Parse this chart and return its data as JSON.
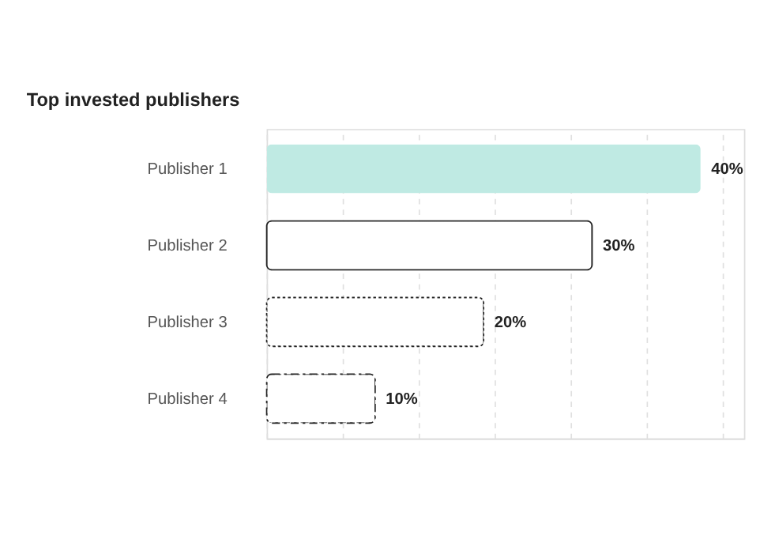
{
  "chart_data": {
    "type": "bar",
    "orientation": "horizontal",
    "title": "Top invested publishers",
    "categories": [
      "Publisher 1",
      "Publisher 2",
      "Publisher 3",
      "Publisher 4"
    ],
    "values": [
      40,
      30,
      20,
      10
    ],
    "value_labels": [
      "40%",
      "30%",
      "20%",
      "10%"
    ],
    "colors": [
      "#bfeae3",
      "#ffffff",
      "#ffffff",
      "#ffffff"
    ],
    "line_style": [
      "none",
      "solid",
      "dotted",
      "dashed"
    ],
    "xlim": [
      0,
      44
    ],
    "xticks": [
      {
        "value": 0,
        "label": null
      },
      {
        "value": 7,
        "label": null
      },
      {
        "value": 14,
        "label": null
      },
      {
        "value": 21,
        "label": null
      },
      {
        "value": 28,
        "label": null
      },
      {
        "value": 35,
        "label": null
      },
      {
        "value": 42,
        "label": null
      }
    ],
    "grid": "x",
    "tick_labels": "y"
  }
}
